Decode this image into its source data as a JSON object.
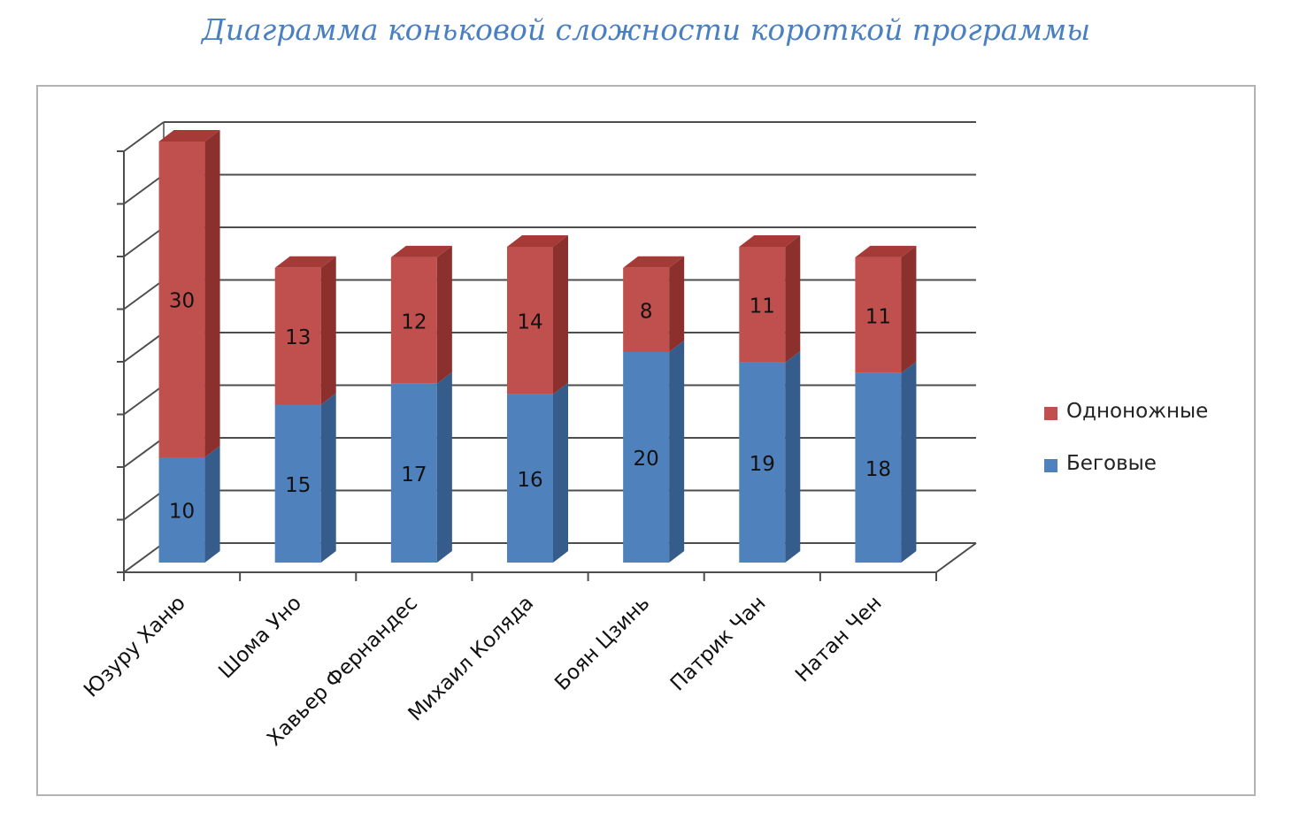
{
  "title": "Диаграмма коньковой сложности короткой программы",
  "colors": {
    "title": "#4a7fc1",
    "series": [
      "#4f81bd",
      "#c0504d"
    ],
    "series_side": [
      "#355c8a",
      "#8c302e"
    ],
    "series_top": [
      "#6a97d0",
      "#a63a37"
    ],
    "grid": "#4d4d4d",
    "frame": "#b3b3b3"
  },
  "legend": {
    "items": [
      {
        "label": "Одноножные",
        "color": "#c0504d"
      },
      {
        "label": "Беговые",
        "color": "#4f81bd"
      }
    ]
  },
  "chart_data": {
    "type": "bar",
    "stacked": true,
    "three_d": true,
    "title": "Диаграмма коньковой сложности короткой программы",
    "categories": [
      "Юзуру Ханю",
      "Шома Уно",
      "Хавьер Фернандес",
      "Михаил Коляда",
      "Боян Цзинь",
      "Патрик Чан",
      "Натан Чен"
    ],
    "series": [
      {
        "name": "Беговые",
        "values": [
          10,
          15,
          17,
          16,
          20,
          19,
          18
        ]
      },
      {
        "name": "Одноножные",
        "values": [
          30,
          13,
          12,
          14,
          8,
          11,
          11
        ]
      }
    ],
    "ylim": [
      0,
      40
    ],
    "y_gridline_step": 5,
    "y_tick_labels_shown": false,
    "data_labels": true,
    "grid": true,
    "legend_position": "right"
  }
}
